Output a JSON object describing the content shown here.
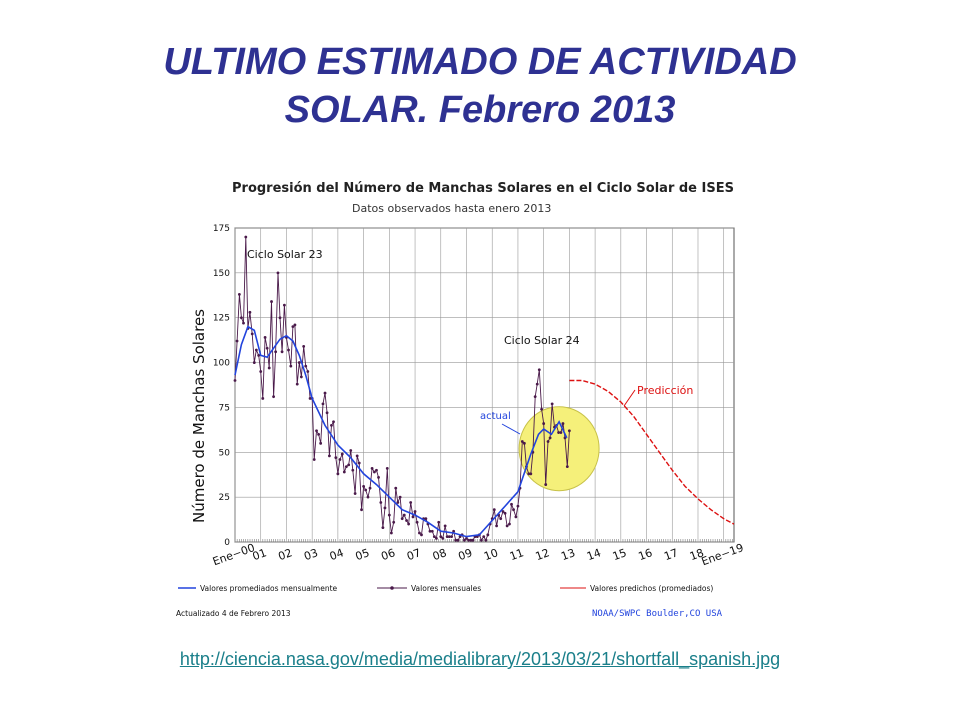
{
  "slide": {
    "title_line1": "ULTIMO ESTIMADO DE ACTIVIDAD",
    "title_line2": "SOLAR. Febrero 2013",
    "source_link": "http://ciencia.nasa.gov/media/medialibrary/2013/03/21/shortfall_spanish.jpg"
  },
  "colors": {
    "title": "#2e3192",
    "monthly": "#4a1a4a",
    "smoothed": "#2244dd",
    "predicted": "#dd1111",
    "highlight": "#f5f07a",
    "link": "#1a7f8a"
  },
  "chart_data": {
    "type": "line",
    "title": "Progresión del Número de Manchas Solares en el Ciclo Solar de ISES",
    "subtitle": "Datos observados hasta enero 2013",
    "ylabel": "Número de Manchas Solares",
    "xlabel": "",
    "ylim": [
      0,
      175
    ],
    "xlim": [
      2000.0,
      2019.4
    ],
    "yticks": [
      "0",
      "25",
      "50",
      "75",
      "100",
      "125",
      "150",
      "175"
    ],
    "ytick_values": [
      0,
      25,
      50,
      75,
      100,
      125,
      150,
      175
    ],
    "xticks": [
      "Ene−00",
      "01",
      "02",
      "03",
      "04",
      "05",
      "06",
      "07",
      "08",
      "09",
      "10",
      "11",
      "12",
      "13",
      "14",
      "15",
      "16",
      "17",
      "18",
      "Ene−19"
    ],
    "xtick_values": [
      2000,
      2001,
      2002,
      2003,
      2004,
      2005,
      2006,
      2007,
      2008,
      2009,
      2010,
      2011,
      2012,
      2013,
      2014,
      2015,
      2016,
      2017,
      2018,
      2019
    ],
    "grid": true,
    "annotations": {
      "cycle23": "Ciclo Solar 23",
      "cycle24": "Ciclo Solar 24",
      "current": "actual",
      "prediction": "Predicción"
    },
    "legend": {
      "smoothed": "Valores promediados mensualmente",
      "monthly": "Valores mensuales",
      "predicted": "Valores predichos (promediados)"
    },
    "footer_left": "Actualizado 4 de Febrero 2013",
    "footer_right": "NOAA/SWPC Boulder,CO USA",
    "series": [
      {
        "name": "Valores mensuales",
        "x": [
          2000.0,
          2000.08,
          2000.17,
          2000.25,
          2000.33,
          2000.42,
          2000.5,
          2000.58,
          2000.67,
          2000.75,
          2000.83,
          2000.92,
          2001.0,
          2001.08,
          2001.17,
          2001.25,
          2001.33,
          2001.42,
          2001.5,
          2001.58,
          2001.67,
          2001.75,
          2001.83,
          2001.92,
          2002.0,
          2002.08,
          2002.17,
          2002.25,
          2002.33,
          2002.42,
          2002.5,
          2002.58,
          2002.67,
          2002.75,
          2002.83,
          2002.92,
          2003.0,
          2003.08,
          2003.17,
          2003.25,
          2003.33,
          2003.42,
          2003.5,
          2003.58,
          2003.67,
          2003.75,
          2003.83,
          2003.92,
          2004.0,
          2004.08,
          2004.17,
          2004.25,
          2004.33,
          2004.42,
          2004.5,
          2004.58,
          2004.67,
          2004.75,
          2004.83,
          2004.92,
          2005.0,
          2005.08,
          2005.17,
          2005.25,
          2005.33,
          2005.42,
          2005.5,
          2005.58,
          2005.67,
          2005.75,
          2005.83,
          2005.92,
          2006.0,
          2006.08,
          2006.17,
          2006.25,
          2006.33,
          2006.42,
          2006.5,
          2006.58,
          2006.67,
          2006.75,
          2006.83,
          2006.92,
          2007.0,
          2007.08,
          2007.17,
          2007.25,
          2007.33,
          2007.42,
          2007.5,
          2007.58,
          2007.67,
          2007.75,
          2007.83,
          2007.92,
          2008.0,
          2008.08,
          2008.17,
          2008.25,
          2008.33,
          2008.42,
          2008.5,
          2008.58,
          2008.67,
          2008.75,
          2008.83,
          2008.92,
          2009.0,
          2009.08,
          2009.17,
          2009.25,
          2009.33,
          2009.42,
          2009.5,
          2009.58,
          2009.67,
          2009.75,
          2009.83,
          2009.92,
          2010.0,
          2010.08,
          2010.17,
          2010.25,
          2010.33,
          2010.42,
          2010.5,
          2010.58,
          2010.67,
          2010.75,
          2010.83,
          2010.92,
          2011.0,
          2011.08,
          2011.17,
          2011.25,
          2011.33,
          2011.42,
          2011.5,
          2011.58,
          2011.67,
          2011.75,
          2011.83,
          2011.92,
          2012.0,
          2012.08,
          2012.17,
          2012.25,
          2012.33,
          2012.42,
          2012.5,
          2012.58,
          2012.67,
          2012.75,
          2012.83,
          2012.92,
          2013.0
        ],
        "y": [
          90,
          112,
          138,
          125,
          122,
          170,
          119,
          128,
          116,
          100,
          107,
          104,
          95,
          80,
          114,
          108,
          97,
          134,
          81,
          106,
          150,
          125,
          106,
          132,
          114,
          107,
          98,
          120,
          121,
          88,
          100,
          92,
          109,
          98,
          95,
          80,
          80,
          46,
          62,
          60,
          55,
          77,
          83,
          72,
          48,
          65,
          67,
          47,
          38,
          46,
          49,
          39,
          42,
          43,
          51,
          40,
          27,
          48,
          44,
          18,
          31,
          29,
          25,
          30,
          41,
          39,
          40,
          36,
          22,
          8,
          19,
          41,
          15,
          5,
          11,
          30,
          22,
          25,
          13,
          15,
          12,
          10,
          22,
          14,
          17,
          11,
          5,
          4,
          13,
          13,
          10,
          6,
          6,
          3,
          2,
          11,
          3,
          2,
          9,
          3,
          3,
          3,
          6,
          1,
          1,
          3,
          4,
          1,
          2,
          1,
          1,
          1,
          3,
          3,
          4,
          1,
          3,
          1,
          4,
          10,
          13,
          18,
          9,
          15,
          13,
          17,
          16,
          9,
          10,
          21,
          18,
          14,
          20,
          30,
          56,
          55,
          42,
          38,
          38,
          50,
          81,
          88,
          96,
          74,
          66,
          32,
          56,
          58,
          77,
          64,
          65,
          61,
          61,
          66,
          58,
          42,
          62
        ],
        "markers": true
      },
      {
        "name": "Valores promediados mensualmente",
        "x": [
          2000.0,
          2000.25,
          2000.5,
          2000.75,
          2001.0,
          2001.25,
          2001.5,
          2001.75,
          2002.0,
          2002.25,
          2002.5,
          2002.75,
          2003.0,
          2003.5,
          2004.0,
          2004.5,
          2005.0,
          2005.5,
          2006.0,
          2006.5,
          2007.0,
          2007.5,
          2008.0,
          2008.5,
          2009.0,
          2009.5,
          2010.0,
          2010.5,
          2011.0,
          2011.5,
          2011.8,
          2012.0,
          2012.3,
          2012.6,
          2012.9
        ],
        "y": [
          93,
          110,
          120,
          118,
          104,
          103,
          108,
          113,
          115,
          112,
          104,
          93,
          80,
          65,
          54,
          47,
          38,
          32,
          25,
          18,
          15,
          11,
          6,
          5,
          3,
          4,
          12,
          20,
          28,
          49,
          60,
          63,
          60,
          67,
          58
        ]
      },
      {
        "name": "Valores predichos (promediados)",
        "x": [
          2013.0,
          2013.5,
          2014.0,
          2014.5,
          2015.0,
          2015.5,
          2016.0,
          2016.5,
          2017.0,
          2017.5,
          2018.0,
          2018.5,
          2019.0,
          2019.4
        ],
        "y": [
          90,
          90,
          88,
          84,
          78,
          70,
          60,
          50,
          40,
          31,
          24,
          18,
          13,
          10
        ],
        "dashed": true
      }
    ]
  }
}
